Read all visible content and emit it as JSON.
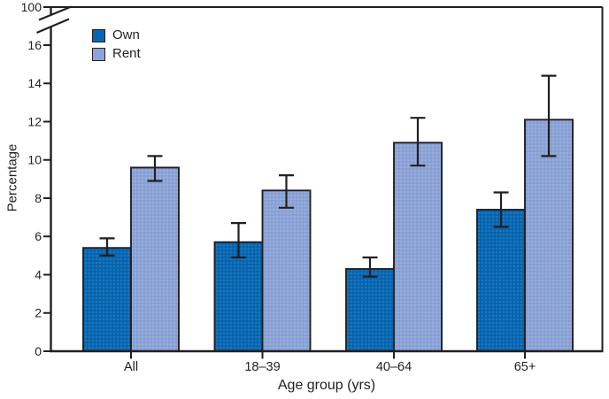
{
  "chart_data": {
    "type": "bar",
    "title": "",
    "categories": [
      "All",
      "18–39",
      "40–64",
      "65+"
    ],
    "series": [
      {
        "name": "Own",
        "color": "#0767b2",
        "values": [
          5.4,
          5.7,
          4.3,
          7.4
        ],
        "error_low": [
          5.0,
          4.9,
          3.9,
          6.5
        ],
        "error_high": [
          5.9,
          6.7,
          4.9,
          8.3
        ]
      },
      {
        "name": "Rent",
        "color": "#8ca4d8",
        "values": [
          9.6,
          8.4,
          10.9,
          12.1
        ],
        "error_low": [
          8.9,
          7.5,
          9.7,
          10.2
        ],
        "error_high": [
          10.2,
          9.2,
          12.2,
          14.4
        ]
      }
    ],
    "xlabel": "Age group (yrs)",
    "ylabel": "Percentage",
    "ylim": [
      0,
      16
    ],
    "y_ticks": [
      0,
      2,
      4,
      6,
      8,
      10,
      12,
      14,
      16
    ],
    "y_axis_break": {
      "shown": true,
      "upper_tick_label": "100"
    },
    "error_bars": true,
    "grid": false,
    "legend_position": "top-left-inside",
    "axis_color": "#231f20",
    "background_color": "#ffffff"
  }
}
